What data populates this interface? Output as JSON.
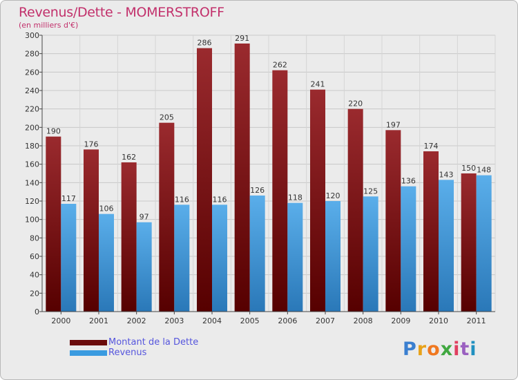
{
  "chart_data": {
    "type": "bar",
    "title": "Revenus/Dette - MOMERSTROFF",
    "subtitle": "(en milliers d'€)",
    "categories": [
      "2000",
      "2001",
      "2002",
      "2003",
      "2004",
      "2005",
      "2006",
      "2007",
      "2008",
      "2009",
      "2010",
      "2011"
    ],
    "series": [
      {
        "name": "Montant de la Dette",
        "color": "#8b1a1a",
        "values": [
          190,
          176,
          162,
          205,
          286,
          291,
          262,
          241,
          220,
          197,
          174,
          150
        ]
      },
      {
        "name": "Revenus",
        "color": "#3a9be0",
        "values": [
          117,
          106,
          97,
          116,
          116,
          126,
          118,
          120,
          125,
          136,
          143,
          148
        ]
      }
    ],
    "ylim": [
      0,
      300
    ],
    "yticks": [
      0,
      20,
      40,
      60,
      80,
      100,
      120,
      140,
      160,
      180,
      200,
      220,
      240,
      260,
      280,
      300
    ],
    "grid": true,
    "legend_position": "bottom-left"
  },
  "brand": {
    "letters": [
      "P",
      "r",
      "o",
      "x",
      "i",
      "t",
      "i"
    ]
  }
}
